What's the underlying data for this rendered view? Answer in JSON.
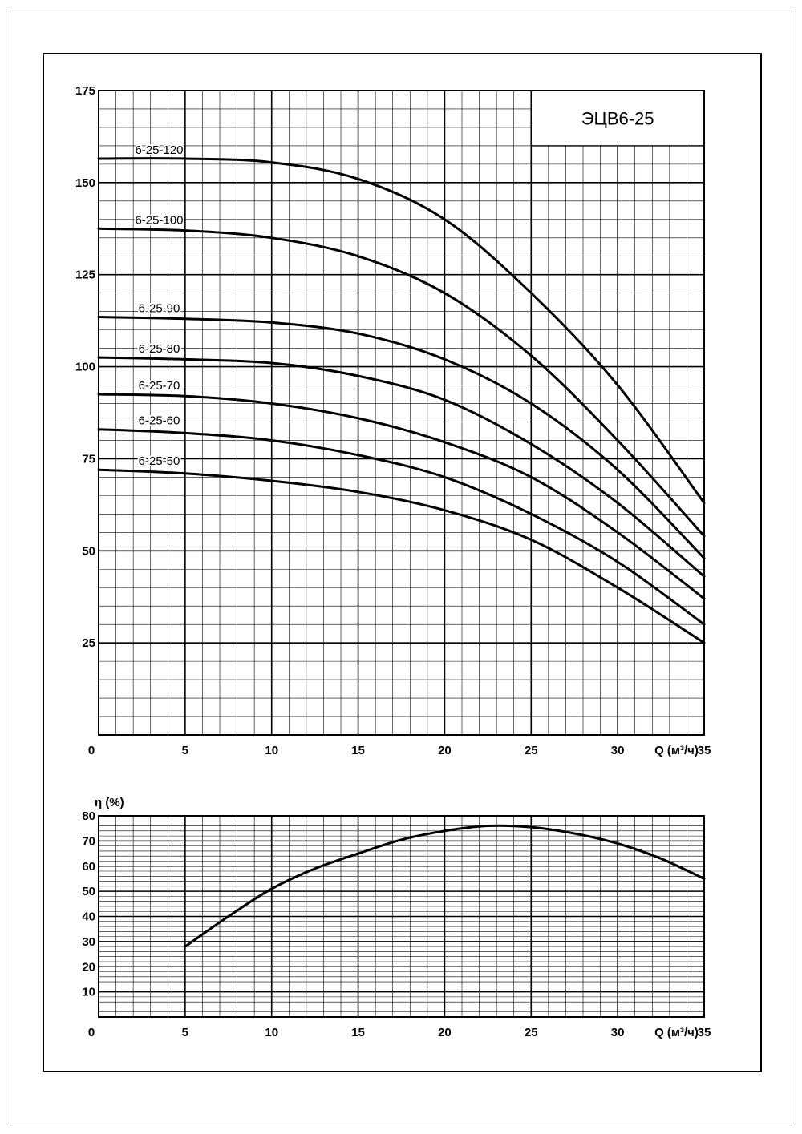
{
  "chart_data": [
    {
      "type": "line",
      "title": "ЭЦВ6-25",
      "xlabel": "Q (м³/ч)",
      "ylabel": "",
      "xlim": [
        0,
        35
      ],
      "ylim": [
        0,
        175
      ],
      "x_ticks": [
        "0",
        "5",
        "10",
        "15",
        "20",
        "25",
        "30",
        "35"
      ],
      "y_ticks": [
        "25",
        "50",
        "75",
        "100",
        "125",
        "150",
        "175"
      ],
      "grid": true,
      "series": [
        {
          "name": "6-25-120",
          "x": [
            0,
            5,
            10,
            15,
            20,
            25,
            30,
            35
          ],
          "y": [
            156.5,
            156.5,
            155.5,
            151,
            140,
            120,
            95,
            63
          ]
        },
        {
          "name": "6-25-100",
          "x": [
            0,
            5,
            10,
            15,
            20,
            25,
            30,
            35
          ],
          "y": [
            137.5,
            137,
            135,
            130,
            120,
            103,
            80,
            54
          ]
        },
        {
          "name": "6-25-90",
          "x": [
            0,
            5,
            10,
            15,
            20,
            25,
            30,
            35
          ],
          "y": [
            113.5,
            113,
            112,
            109,
            102,
            90,
            72,
            48
          ]
        },
        {
          "name": "6-25-80",
          "x": [
            0,
            5,
            10,
            15,
            20,
            25,
            30,
            35
          ],
          "y": [
            102.5,
            102,
            101,
            97.5,
            91,
            79,
            63,
            43
          ]
        },
        {
          "name": "6-25-70",
          "x": [
            0,
            5,
            10,
            15,
            20,
            25,
            30,
            35
          ],
          "y": [
            92.5,
            92,
            90,
            86,
            79.5,
            70,
            55,
            37
          ]
        },
        {
          "name": "6-25-60",
          "x": [
            0,
            5,
            10,
            15,
            20,
            25,
            30,
            35
          ],
          "y": [
            83,
            82,
            80,
            76,
            70,
            60,
            47,
            30
          ]
        },
        {
          "name": "6-25-50",
          "x": [
            0,
            5,
            10,
            15,
            20,
            25,
            30,
            35
          ],
          "y": [
            72,
            71,
            69,
            66,
            61,
            53,
            40,
            25
          ]
        }
      ]
    },
    {
      "type": "line",
      "title": "",
      "xlabel": "Q (м³/ч)",
      "ylabel": "η (%)",
      "xlim": [
        0,
        35
      ],
      "ylim": [
        0,
        80
      ],
      "x_ticks": [
        "0",
        "5",
        "10",
        "15",
        "20",
        "25",
        "30",
        "35"
      ],
      "y_ticks": [
        "10",
        "20",
        "30",
        "40",
        "50",
        "60",
        "70",
        "80"
      ],
      "grid": true,
      "series": [
        {
          "name": "",
          "x": [
            5,
            7.5,
            10,
            12.5,
            15,
            17.5,
            20,
            22.5,
            25,
            27.5,
            30,
            32.5,
            35
          ],
          "y": [
            28,
            40,
            51,
            59,
            65,
            70.5,
            74,
            76,
            75.5,
            73,
            69,
            63,
            55
          ]
        }
      ]
    }
  ]
}
